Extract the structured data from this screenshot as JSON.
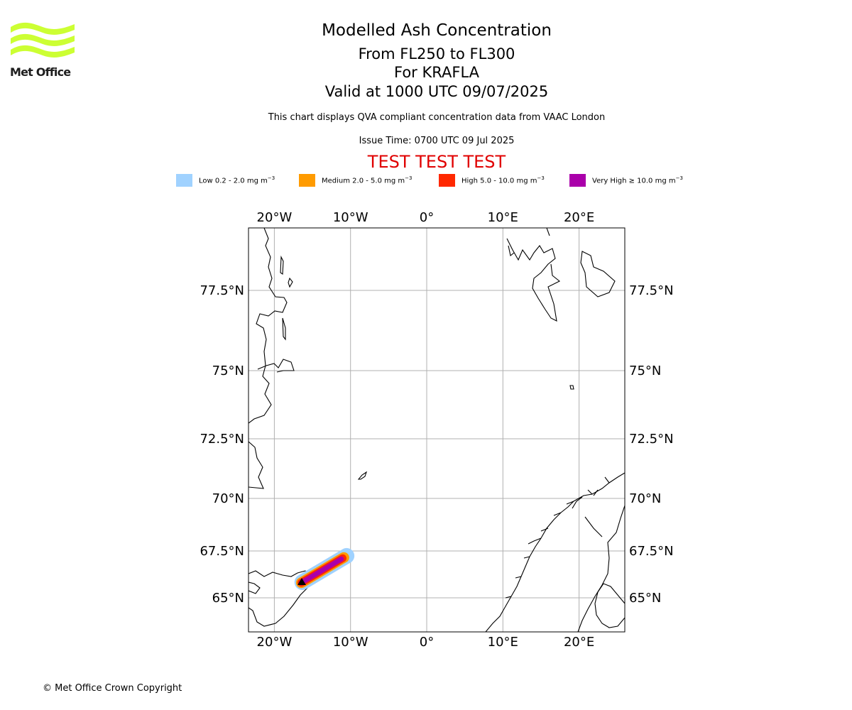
{
  "logo": {
    "text": "Met Office",
    "color": "#ccff33"
  },
  "header": {
    "title": "Modelled Ash Concentration",
    "flight_levels": "From FL250 to FL300",
    "volcano": "For KRAFLA",
    "valid_time": "Valid at 1000 UTC 09/07/2025",
    "compliance_note": "This chart displays QVA compliant concentration data from VAAC London",
    "issue_time": "Issue Time: 0700 UTC 09 Jul 2025",
    "test_banner": "TEST TEST TEST"
  },
  "legend": [
    {
      "range": "Low 0.2 - 2.0 mg m",
      "color": "#a0d2ff"
    },
    {
      "range": "Medium 2.0 - 5.0 mg m",
      "color": "#ff9b00"
    },
    {
      "range": "High 5.0 - 10.0 mg m",
      "color": "#ff2800"
    },
    {
      "range": "Very High ≥ 10.0 mg m",
      "color": "#aa00aa"
    }
  ],
  "legend_unit_exponent": "−3",
  "map": {
    "lon_ticks": [
      {
        "lon": -20,
        "label": "20°W"
      },
      {
        "lon": -10,
        "label": "10°W"
      },
      {
        "lon": 0,
        "label": "0°"
      },
      {
        "lon": 10,
        "label": "10°E"
      },
      {
        "lon": 20,
        "label": "20°E"
      }
    ],
    "lat_ticks": [
      {
        "lat": 77.5,
        "label": "77.5°N"
      },
      {
        "lat": 75,
        "label": "75°N"
      },
      {
        "lat": 72.5,
        "label": "72.5°N"
      },
      {
        "lat": 70,
        "label": "70°N"
      },
      {
        "lat": 67.5,
        "label": "67.5°N"
      },
      {
        "lat": 65,
        "label": "65°N"
      }
    ],
    "plume_levels": [
      "low",
      "medium",
      "high",
      "very_high"
    ]
  },
  "footer": {
    "copyright": "© Met Office Crown Copyright"
  }
}
